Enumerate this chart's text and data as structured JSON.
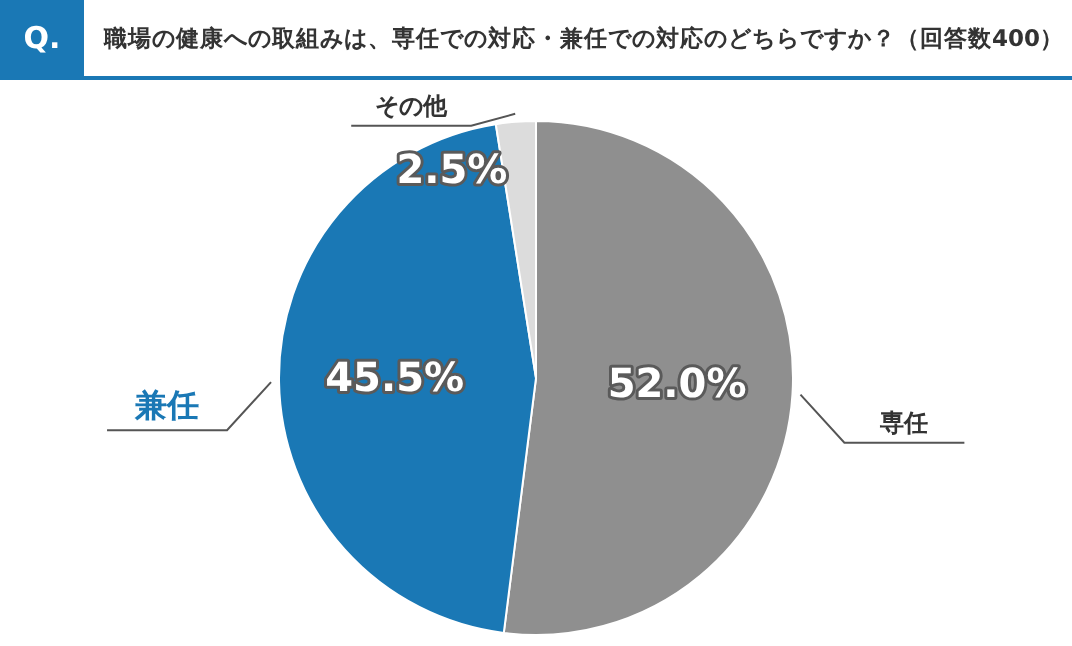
{
  "chart_data": {
    "type": "pie",
    "title": "職場の健康への取組みは、専任での対応・兼任での対応のどちらですか？（回答数400）",
    "annotations": [
      "Q."
    ],
    "categories": [
      "専任",
      "兼任",
      "その他"
    ],
    "values": [
      52.0,
      45.5,
      2.5
    ],
    "colors": [
      "#8f8f8f",
      "#1a78b5",
      "#dcdcdc"
    ],
    "value_labels": [
      "52.0%",
      "45.5%",
      "2.5%"
    ],
    "legend": false
  }
}
